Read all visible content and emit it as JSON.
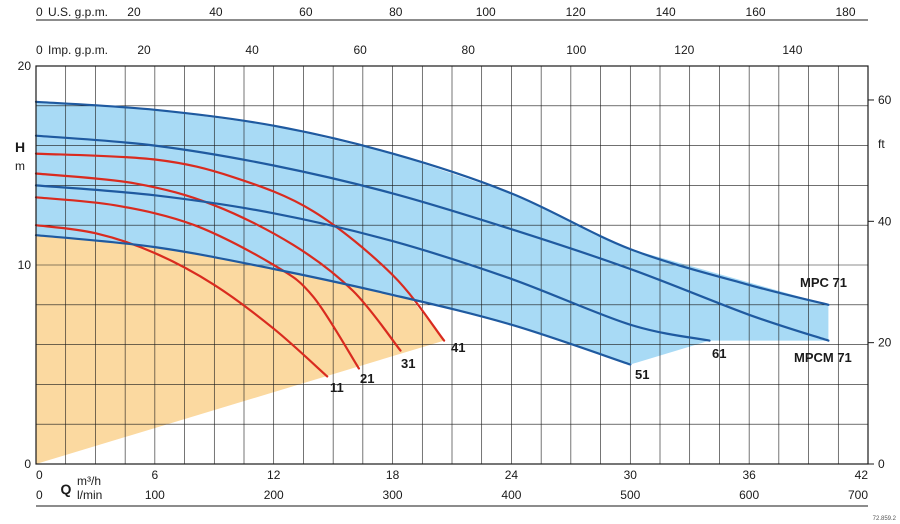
{
  "chart_data": {
    "type": "line",
    "title": "",
    "x_axis": {
      "primary": {
        "unit_line1": "m³/h",
        "unit_line2": "",
        "symbol": "Q",
        "range": [
          0,
          42
        ],
        "ticks": [
          "0",
          "6",
          "12",
          "18",
          "24",
          "30",
          "36",
          "42"
        ]
      },
      "lmin": {
        "unit": "l/min",
        "range": [
          0,
          700
        ],
        "ticks": [
          "0",
          "100",
          "200",
          "300",
          "400",
          "500",
          "600",
          "700"
        ]
      },
      "us_gpm": {
        "label": "U.S. g.p.m.",
        "range": [
          0,
          185
        ],
        "ticks": [
          "0",
          "20",
          "40",
          "60",
          "80",
          "100",
          "120",
          "140",
          "160",
          "180"
        ]
      },
      "imp_gpm": {
        "label": "Imp. g.p.m.",
        "range": [
          0,
          154
        ],
        "ticks": [
          "0",
          "20",
          "40",
          "60",
          "80",
          "100",
          "120",
          "140"
        ]
      }
    },
    "y_axis": {
      "metres": {
        "symbol": "H",
        "unit": "m",
        "range": [
          0,
          20
        ],
        "ticks": [
          "0",
          "10",
          "20"
        ]
      },
      "feet": {
        "unit": "ft",
        "range": [
          0,
          65.6
        ],
        "ticks": [
          "0",
          "20",
          "40",
          "60"
        ]
      }
    },
    "grid": true,
    "colors": {
      "orange_region": "#fbd9a0",
      "blue_region": "#a8daf5",
      "red_curves": "#d92b1f",
      "blue_curves": "#1f5aa0",
      "grid": "#1a1a1a"
    },
    "regions": [
      {
        "name": "orange",
        "points": [
          [
            0,
            0
          ],
          [
            0,
            15.6
          ],
          [
            6,
            15.3
          ],
          [
            12,
            13.6
          ],
          [
            18,
            9.5
          ],
          [
            20.6,
            6.2
          ]
        ]
      },
      {
        "name": "blue",
        "points": [
          [
            0,
            18.2
          ],
          [
            6,
            17.8
          ],
          [
            12,
            17.0
          ],
          [
            18,
            15.6
          ],
          [
            24,
            13.6
          ],
          [
            30,
            10.8
          ],
          [
            40,
            8.0
          ],
          [
            40,
            6.2
          ],
          [
            34,
            6.2
          ],
          [
            30,
            5.0
          ],
          [
            24,
            7.0
          ],
          [
            18,
            8.5
          ],
          [
            12,
            9.8
          ],
          [
            6,
            10.9
          ],
          [
            0,
            11.5
          ]
        ]
      }
    ],
    "series": [
      {
        "name": "11",
        "color": "red",
        "label": "11",
        "points": [
          [
            0,
            12.0
          ],
          [
            3,
            11.6
          ],
          [
            6,
            10.6
          ],
          [
            9,
            9.0
          ],
          [
            12,
            6.8
          ],
          [
            14.7,
            4.4
          ]
        ]
      },
      {
        "name": "21",
        "color": "red",
        "label": "21",
        "points": [
          [
            0,
            13.4
          ],
          [
            4,
            13.0
          ],
          [
            8,
            12.0
          ],
          [
            12,
            10.0
          ],
          [
            14,
            8.4
          ],
          [
            16.3,
            4.8
          ]
        ]
      },
      {
        "name": "31",
        "color": "red",
        "label": "31",
        "points": [
          [
            0,
            14.6
          ],
          [
            5,
            14.1
          ],
          [
            9,
            13.0
          ],
          [
            13,
            11.0
          ],
          [
            16,
            8.7
          ],
          [
            18.4,
            5.7
          ]
        ]
      },
      {
        "name": "41",
        "color": "red",
        "label": "41",
        "points": [
          [
            0,
            15.6
          ],
          [
            6,
            15.3
          ],
          [
            10,
            14.4
          ],
          [
            14,
            12.7
          ],
          [
            18,
            9.5
          ],
          [
            20.6,
            6.2
          ]
        ]
      },
      {
        "name": "51",
        "color": "blue",
        "label": "51",
        "points": [
          [
            0,
            11.5
          ],
          [
            6,
            10.9
          ],
          [
            12,
            9.8
          ],
          [
            18,
            8.5
          ],
          [
            24,
            7.0
          ],
          [
            30,
            5.0
          ]
        ]
      },
      {
        "name": "61",
        "color": "blue",
        "label": "61",
        "points": [
          [
            0,
            14.0
          ],
          [
            6,
            13.5
          ],
          [
            12,
            12.6
          ],
          [
            18,
            11.2
          ],
          [
            24,
            9.3
          ],
          [
            30,
            7.0
          ],
          [
            34,
            6.2
          ]
        ]
      },
      {
        "name": "MPCM 71",
        "color": "blue",
        "label": "MPCM 71",
        "points": [
          [
            0,
            16.5
          ],
          [
            6,
            16.0
          ],
          [
            12,
            15.0
          ],
          [
            18,
            13.6
          ],
          [
            24,
            11.8
          ],
          [
            30,
            9.8
          ],
          [
            36,
            7.5
          ],
          [
            40,
            6.2
          ]
        ]
      },
      {
        "name": "MPC 71",
        "color": "blue",
        "label": "MPC 71",
        "points": [
          [
            0,
            18.2
          ],
          [
            6,
            17.8
          ],
          [
            12,
            17.0
          ],
          [
            18,
            15.6
          ],
          [
            24,
            13.6
          ],
          [
            30,
            10.8
          ],
          [
            36,
            9.0
          ],
          [
            40,
            8.0
          ]
        ]
      }
    ],
    "reference_code": "72.859.2"
  }
}
